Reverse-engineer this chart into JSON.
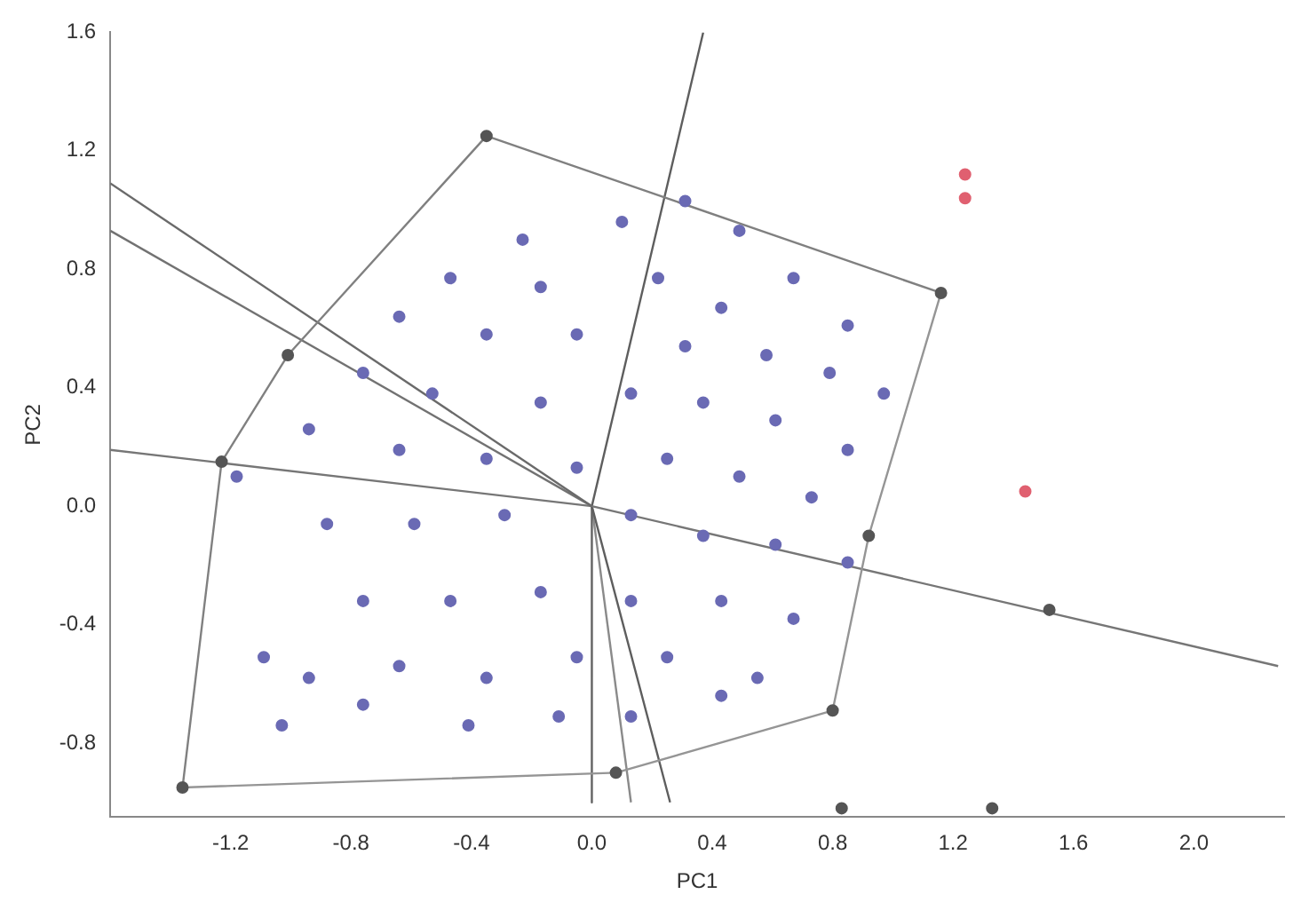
{
  "chart_data": {
    "type": "scatter",
    "xlabel": "PC1",
    "ylabel": "PC2",
    "xlim": [
      -1.6,
      2.3
    ],
    "ylim": [
      -1.05,
      1.6
    ],
    "xticks": [
      {
        "value": -1.2,
        "label": "-1.2"
      },
      {
        "value": -0.8,
        "label": "-0.8"
      },
      {
        "value": -0.4,
        "label": "-0.4"
      },
      {
        "value": 0,
        "label": "0.0"
      },
      {
        "value": 0.4,
        "label": "0.4"
      },
      {
        "value": 0.8,
        "label": "0.8"
      },
      {
        "value": 1.2,
        "label": "1.2"
      },
      {
        "value": 1.6,
        "label": "1.6"
      },
      {
        "value": 2,
        "label": "2.0"
      }
    ],
    "yticks": [
      {
        "value": -0.8,
        "label": "-0.8"
      },
      {
        "value": -0.4,
        "label": "-0.4"
      },
      {
        "value": 0,
        "label": "0.0"
      },
      {
        "value": 0.4,
        "label": "0.4"
      },
      {
        "value": 0.8,
        "label": "0.8"
      },
      {
        "value": 1.2,
        "label": "1.2"
      },
      {
        "value": 1.6,
        "label": "1.6"
      }
    ],
    "grid": false,
    "legend": false,
    "marker": "circle",
    "series": [
      {
        "color": "#6a6ab4",
        "x": [
          -0.23,
          0.1,
          0.31,
          0.49,
          -0.47,
          -0.17,
          0.22,
          0.43,
          0.67,
          0.85,
          -0.64,
          -0.35,
          -0.05,
          0.31,
          0.58,
          0.79,
          0.97,
          -0.76,
          -0.53,
          -0.17,
          0.13,
          0.37,
          0.61,
          0.85,
          -0.94,
          -0.64,
          -0.35,
          -0.05,
          0.25,
          0.49,
          0.73,
          -0.88,
          -0.59,
          -0.29,
          0.13,
          0.37,
          0.61,
          0.85,
          -0.76,
          -0.47,
          -0.17,
          0.13,
          0.43,
          0.67,
          -0.94,
          -0.64,
          -0.35,
          -0.05,
          0.25,
          0.55,
          -1.03,
          -0.76,
          -0.41,
          -0.11,
          0.13,
          0.43,
          -1.18,
          -1.09
        ],
        "values": [
          0.9,
          0.96,
          1.03,
          0.93,
          0.77,
          0.74,
          0.77,
          0.67,
          0.77,
          0.61,
          0.64,
          0.58,
          0.58,
          0.54,
          0.51,
          0.45,
          0.38,
          0.45,
          0.38,
          0.35,
          0.38,
          0.35,
          0.29,
          0.19,
          0.26,
          0.19,
          0.16,
          0.13,
          0.16,
          0.1,
          0.03,
          -0.06,
          -0.06,
          -0.03,
          -0.03,
          -0.1,
          -0.13,
          -0.19,
          -0.32,
          -0.32,
          -0.29,
          -0.32,
          -0.32,
          -0.38,
          -0.58,
          -0.54,
          -0.58,
          -0.51,
          -0.51,
          -0.58,
          -0.74,
          -0.67,
          -0.74,
          -0.71,
          -0.71,
          -0.64,
          0.1,
          -0.51
        ]
      },
      {
        "color": "#555555",
        "x": [
          -0.35,
          1.16,
          0.92,
          0.8,
          0.08,
          -1.36,
          -1.23,
          -1.01,
          0.83,
          1.33,
          1.52
        ],
        "values": [
          1.25,
          0.72,
          -0.1,
          -0.69,
          -0.9,
          -0.95,
          0.15,
          0.51,
          -1.02,
          -1.02,
          -0.35
        ]
      },
      {
        "color": "#e06070",
        "x": [
          1.24,
          1.24,
          1.44
        ],
        "values": [
          1.12,
          1.04,
          0.05
        ]
      },
      {
        "type": "line",
        "color": "#808080",
        "marker": "none",
        "x": [
          -1.36,
          -1.23,
          -1.01,
          -0.35,
          1.16
        ],
        "values": [
          -0.95,
          0.15,
          0.51,
          1.25,
          0.72
        ]
      },
      {
        "type": "line",
        "color": "#959595",
        "marker": "none",
        "x": [
          -1.36,
          0.08,
          0.8,
          0.92,
          1.16
        ],
        "values": [
          -0.95,
          -0.9,
          -0.69,
          -0.1,
          0.72
        ]
      },
      {
        "type": "line",
        "color": "#6a6a6a",
        "marker": "none",
        "x": [
          0,
          -1.6
        ],
        "values": [
          0,
          1.09
        ]
      },
      {
        "type": "line",
        "color": "#727272",
        "marker": "none",
        "x": [
          0,
          -1.6
        ],
        "values": [
          0,
          0.93
        ]
      },
      {
        "type": "line",
        "color": "#767676",
        "marker": "none",
        "x": [
          -1.6,
          0,
          2.28
        ],
        "values": [
          0.19,
          0,
          -0.54
        ]
      },
      {
        "type": "line",
        "color": "#5e5e5e",
        "marker": "none",
        "x": [
          0.26,
          0,
          0.37
        ],
        "values": [
          -1.0,
          0,
          1.6
        ]
      },
      {
        "type": "line",
        "color": "#626262",
        "marker": "none",
        "x": [
          0,
          0
        ],
        "values": [
          0,
          -1.0
        ]
      },
      {
        "type": "line",
        "color": "#8a8a8a",
        "marker": "none",
        "x": [
          0,
          0.13
        ],
        "values": [
          0,
          -1.0
        ]
      }
    ]
  }
}
